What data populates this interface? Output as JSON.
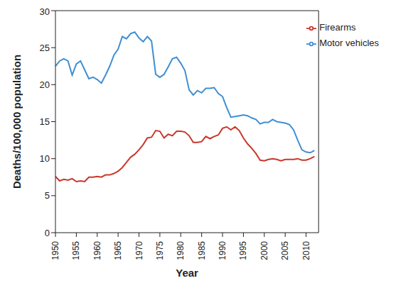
{
  "chart_data": {
    "type": "line",
    "x_label": "Year",
    "y_label": "Deaths/100,000 population",
    "x": [
      1950,
      1951,
      1952,
      1953,
      1954,
      1955,
      1956,
      1957,
      1958,
      1959,
      1960,
      1961,
      1962,
      1963,
      1964,
      1965,
      1966,
      1967,
      1968,
      1969,
      1970,
      1971,
      1972,
      1973,
      1974,
      1975,
      1976,
      1977,
      1978,
      1979,
      1980,
      1981,
      1982,
      1983,
      1984,
      1985,
      1986,
      1987,
      1988,
      1989,
      1990,
      1991,
      1992,
      1993,
      1994,
      1995,
      1996,
      1997,
      1998,
      1999,
      2000,
      2001,
      2002,
      2003,
      2004,
      2005,
      2006,
      2007,
      2008,
      2009,
      2010,
      2011,
      2012
    ],
    "series": [
      {
        "name": "Motor vehicles",
        "color": "#3f8fd2",
        "values": [
          22.5,
          23.2,
          23.5,
          23.2,
          21.3,
          22.8,
          23.2,
          22.0,
          20.8,
          21.0,
          20.7,
          20.2,
          21.3,
          22.5,
          24.0,
          24.8,
          26.5,
          26.2,
          26.9,
          27.1,
          26.3,
          25.8,
          26.5,
          25.9,
          21.4,
          21.0,
          21.4,
          22.4,
          23.5,
          23.7,
          22.9,
          21.9,
          19.3,
          18.6,
          19.2,
          18.9,
          19.5,
          19.5,
          19.6,
          18.8,
          18.4,
          16.9,
          15.6,
          15.7,
          15.8,
          15.9,
          15.8,
          15.5,
          15.3,
          14.7,
          14.9,
          14.9,
          15.3,
          15.0,
          14.9,
          14.8,
          14.6,
          13.9,
          12.5,
          11.2,
          10.9,
          10.8,
          11.1
        ]
      },
      {
        "name": "Firearms",
        "color": "#c9372c",
        "values": [
          7.6,
          7.0,
          7.2,
          7.1,
          7.3,
          6.9,
          7.0,
          6.9,
          7.5,
          7.5,
          7.6,
          7.5,
          7.8,
          7.8,
          8.0,
          8.3,
          8.8,
          9.5,
          10.2,
          10.6,
          11.2,
          11.9,
          12.8,
          12.9,
          13.8,
          13.7,
          12.8,
          13.3,
          13.1,
          13.7,
          13.7,
          13.6,
          13.1,
          12.2,
          12.2,
          12.3,
          13.0,
          12.7,
          13.0,
          13.2,
          14.1,
          14.3,
          13.9,
          14.3,
          13.8,
          12.8,
          12.0,
          11.4,
          10.7,
          9.8,
          9.7,
          9.9,
          10.0,
          9.9,
          9.7,
          9.9,
          9.9,
          9.9,
          10.0,
          9.8,
          9.8,
          10.0,
          10.3
        ]
      }
    ],
    "xlim": [
      1950,
      2013
    ],
    "xticks": [
      1950,
      1955,
      1960,
      1965,
      1970,
      1975,
      1980,
      1985,
      1990,
      1995,
      2000,
      2005,
      2010
    ],
    "ylim": [
      0,
      30
    ],
    "yticks": [
      0,
      5,
      10,
      15,
      20,
      25,
      30
    ],
    "grid": false,
    "legend": "upper right"
  }
}
